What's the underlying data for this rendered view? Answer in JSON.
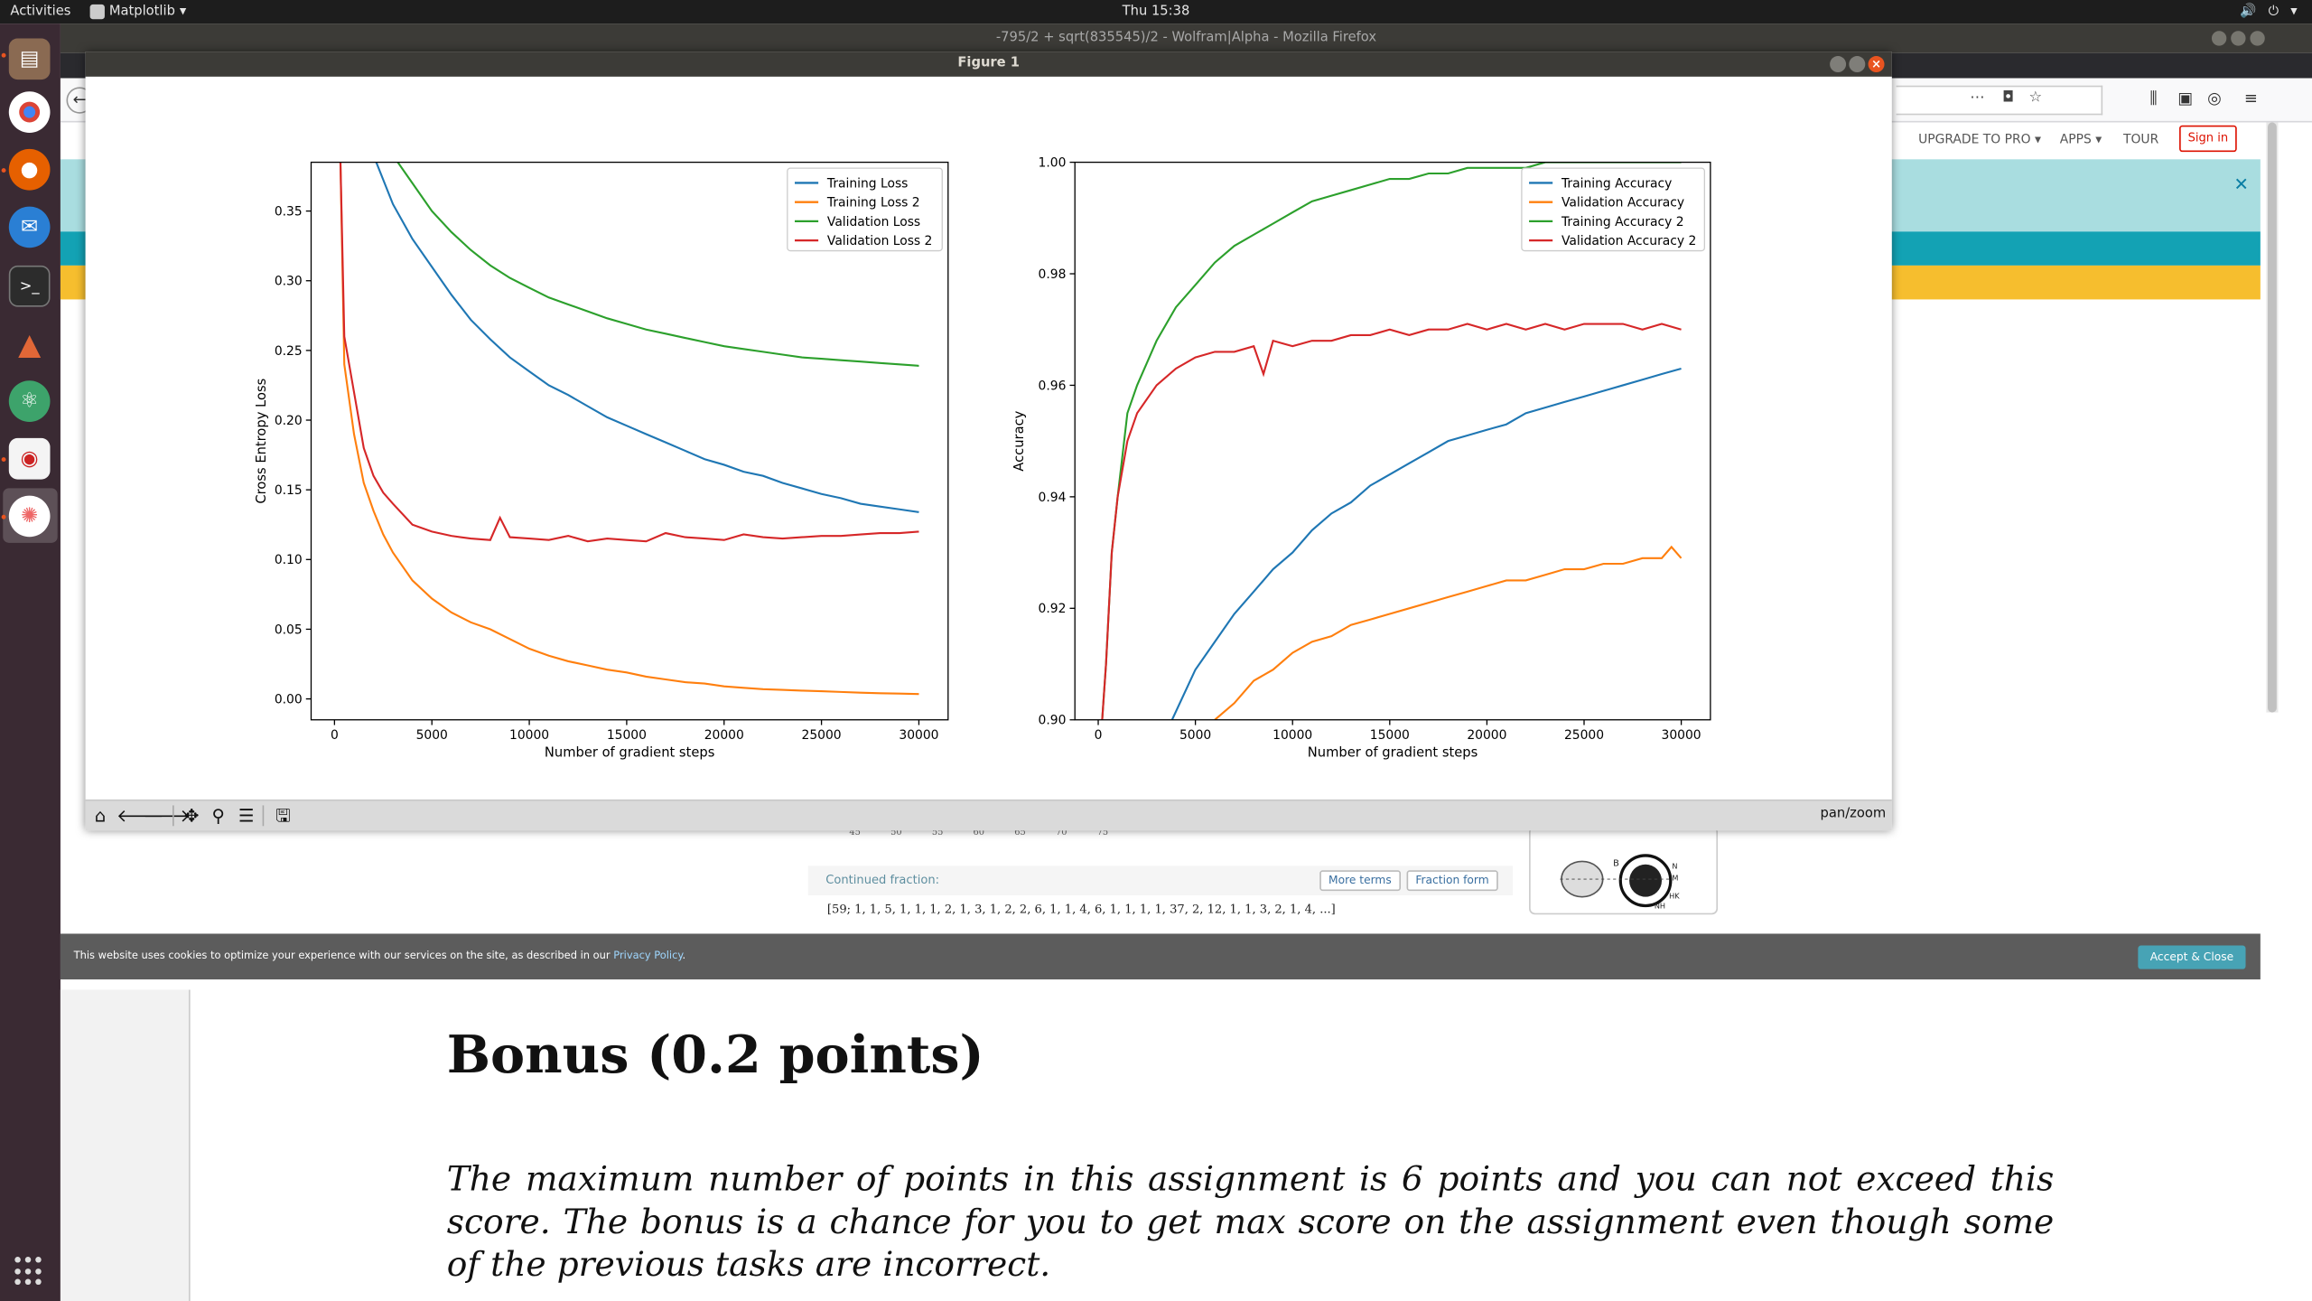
{
  "topbar": {
    "activities": "Activities",
    "app_name": "Matplotlib",
    "clock": "Thu 15:38"
  },
  "dock": {
    "icons": [
      "files-icon",
      "chrome-icon",
      "firefox-icon",
      "thunderbird-icon",
      "terminal-icon",
      "matlab-icon",
      "atom-icon",
      "pdf-viewer-icon",
      "matplotlib-icon"
    ]
  },
  "firefox": {
    "title": "-795/2 + sqrt(835545)/2 - Wolfram|Alpha - Mozilla Firefox"
  },
  "wolfram": {
    "nav": {
      "upgrade": "UPGRADE TO PRO",
      "apps": "APPS",
      "tour": "TOUR",
      "signin": "Sign in"
    },
    "ticks": [
      "45",
      "50",
      "55",
      "60",
      "65",
      "70",
      "75"
    ],
    "continued_fraction_label": "Continued fraction:",
    "more_terms": "More terms",
    "fraction_form": "Fraction form",
    "continued_fraction_value": "[59; 1, 1, 5, 1, 1, 1, 2, 1, 3, 1, 2, 2, 6, 1, 1, 4, 6, 1, 1, 1, 1, 37, 2, 12, 1, 1, 3, 2, 1, 4, ...]",
    "eye_figure_labels": [
      "B",
      "N",
      "M",
      "HK",
      "NH"
    ],
    "cookie_text": "This website uses cookies to optimize your experience with our services on the site, as described in our",
    "cookie_link": "Privacy Policy",
    "cookie_end": ".",
    "accept": "Accept & Close"
  },
  "pdf": {
    "heading": "Bonus (0.2 points)",
    "paragraph": "The maximum number of points in this assignment is 6 points and you can not exceed this score. The bonus is a chance for you to get max score on the assignment even though some of the previous tasks are incorrect."
  },
  "figure": {
    "title": "Figure 1",
    "mode": "pan/zoom",
    "toolbar": [
      "home-icon",
      "back-arrow-icon",
      "forward-arrow-icon",
      "pan-icon",
      "zoom-icon",
      "subplots-config-icon",
      "save-icon"
    ]
  },
  "chart_data": [
    {
      "type": "line",
      "xlabel": "Number of gradient steps",
      "ylabel": "Cross Entropy Loss",
      "xlim": [
        -1200,
        31500
      ],
      "ylim": [
        -0.015,
        0.385
      ],
      "xticks": [
        0,
        5000,
        10000,
        15000,
        20000,
        25000,
        30000
      ],
      "yticks": [
        0.0,
        0.05,
        0.1,
        0.15,
        0.2,
        0.25,
        0.3,
        0.35
      ],
      "ytick_labels": [
        "0.00",
        "0.05",
        "0.10",
        "0.15",
        "0.20",
        "0.25",
        "0.30",
        "0.35"
      ],
      "legend": "top-right",
      "series": [
        {
          "name": "Training Loss",
          "color": "#1f77b4",
          "x": [
            2000,
            3000,
            4000,
            5000,
            6000,
            7000,
            8000,
            9000,
            10000,
            11000,
            12000,
            13000,
            14000,
            15000,
            16000,
            17000,
            18000,
            19000,
            20000,
            21000,
            22000,
            23000,
            24000,
            25000,
            26000,
            27000,
            28000,
            29000,
            30000
          ],
          "y": [
            0.39,
            0.355,
            0.33,
            0.31,
            0.29,
            0.272,
            0.258,
            0.245,
            0.235,
            0.225,
            0.218,
            0.21,
            0.202,
            0.196,
            0.19,
            0.184,
            0.178,
            0.172,
            0.168,
            0.163,
            0.16,
            0.155,
            0.151,
            0.147,
            0.144,
            0.14,
            0.138,
            0.136,
            0.134
          ]
        },
        {
          "name": "Training Loss 2",
          "color": "#ff7f0e",
          "x": [
            300,
            500,
            1000,
            1500,
            2000,
            2500,
            3000,
            4000,
            5000,
            6000,
            7000,
            8000,
            9000,
            10000,
            11000,
            12000,
            13000,
            14000,
            15000,
            16000,
            17000,
            18000,
            19000,
            20000,
            21000,
            22000,
            23000,
            24000,
            25000,
            26000,
            27000,
            28000,
            29000,
            30000
          ],
          "y": [
            0.39,
            0.24,
            0.19,
            0.155,
            0.135,
            0.118,
            0.105,
            0.085,
            0.072,
            0.062,
            0.055,
            0.05,
            0.043,
            0.036,
            0.031,
            0.027,
            0.024,
            0.021,
            0.019,
            0.016,
            0.014,
            0.012,
            0.011,
            0.009,
            0.008,
            0.007,
            0.0065,
            0.006,
            0.0055,
            0.005,
            0.0045,
            0.004,
            0.0038,
            0.0035
          ]
        },
        {
          "name": "Validation Loss",
          "color": "#2ca02c",
          "x": [
            3000,
            4000,
            5000,
            6000,
            7000,
            8000,
            9000,
            10000,
            11000,
            12000,
            13000,
            14000,
            15000,
            16000,
            17000,
            18000,
            19000,
            20000,
            21000,
            22000,
            23000,
            24000,
            25000,
            26000,
            27000,
            28000,
            29000,
            30000
          ],
          "y": [
            0.39,
            0.37,
            0.35,
            0.335,
            0.322,
            0.311,
            0.302,
            0.295,
            0.288,
            0.283,
            0.278,
            0.273,
            0.269,
            0.265,
            0.262,
            0.259,
            0.256,
            0.253,
            0.251,
            0.249,
            0.247,
            0.245,
            0.244,
            0.243,
            0.242,
            0.241,
            0.24,
            0.239
          ]
        },
        {
          "name": "Validation Loss 2",
          "color": "#d62728",
          "x": [
            300,
            500,
            1000,
            1500,
            2000,
            2500,
            3000,
            4000,
            5000,
            6000,
            7000,
            8000,
            8500,
            9000,
            10000,
            11000,
            12000,
            13000,
            14000,
            15000,
            16000,
            17000,
            18000,
            19000,
            20000,
            21000,
            22000,
            23000,
            24000,
            25000,
            26000,
            27000,
            28000,
            29000,
            30000
          ],
          "y": [
            0.39,
            0.26,
            0.22,
            0.18,
            0.16,
            0.148,
            0.14,
            0.125,
            0.12,
            0.117,
            0.115,
            0.114,
            0.13,
            0.116,
            0.115,
            0.114,
            0.117,
            0.113,
            0.115,
            0.114,
            0.113,
            0.119,
            0.116,
            0.115,
            0.114,
            0.118,
            0.116,
            0.115,
            0.116,
            0.117,
            0.117,
            0.118,
            0.119,
            0.119,
            0.12
          ]
        }
      ]
    },
    {
      "type": "line",
      "xlabel": "Number of gradient steps",
      "ylabel": "Accuracy",
      "xlim": [
        -1200,
        31500
      ],
      "ylim": [
        0.9,
        1.0
      ],
      "xticks": [
        0,
        5000,
        10000,
        15000,
        20000,
        25000,
        30000
      ],
      "yticks": [
        0.9,
        0.92,
        0.94,
        0.96,
        0.98,
        1.0
      ],
      "ytick_labels": [
        "0.90",
        "0.92",
        "0.94",
        "0.96",
        "0.98",
        "1.00"
      ],
      "legend": "top-right",
      "series": [
        {
          "name": "Training Accuracy",
          "color": "#1f77b4",
          "x": [
            3800,
            5000,
            6000,
            7000,
            8000,
            9000,
            10000,
            11000,
            12000,
            13000,
            14000,
            15000,
            16000,
            17000,
            18000,
            19000,
            20000,
            21000,
            22000,
            23000,
            24000,
            25000,
            26000,
            27000,
            28000,
            29000,
            30000
          ],
          "y": [
            0.9,
            0.909,
            0.914,
            0.919,
            0.923,
            0.927,
            0.93,
            0.934,
            0.937,
            0.939,
            0.942,
            0.944,
            0.946,
            0.948,
            0.95,
            0.951,
            0.952,
            0.953,
            0.955,
            0.956,
            0.957,
            0.958,
            0.959,
            0.96,
            0.961,
            0.962,
            0.963
          ]
        },
        {
          "name": "Validation Accuracy",
          "color": "#ff7f0e",
          "x": [
            6000,
            7000,
            8000,
            9000,
            10000,
            11000,
            12000,
            13000,
            14000,
            15000,
            16000,
            17000,
            18000,
            19000,
            20000,
            21000,
            22000,
            23000,
            24000,
            25000,
            26000,
            27000,
            28000,
            29000,
            29500,
            30000
          ],
          "y": [
            0.9,
            0.903,
            0.907,
            0.909,
            0.912,
            0.914,
            0.915,
            0.917,
            0.918,
            0.919,
            0.92,
            0.921,
            0.922,
            0.923,
            0.924,
            0.925,
            0.925,
            0.926,
            0.927,
            0.927,
            0.928,
            0.928,
            0.929,
            0.929,
            0.931,
            0.929
          ]
        },
        {
          "name": "Training Accuracy 2",
          "color": "#2ca02c",
          "x": [
            200,
            400,
            700,
            1000,
            1500,
            2000,
            3000,
            4000,
            5000,
            6000,
            7000,
            8000,
            9000,
            10000,
            11000,
            12000,
            13000,
            14000,
            15000,
            16000,
            17000,
            18000,
            19000,
            20000,
            21000,
            22000,
            23000,
            24000,
            25000,
            26000,
            27000,
            28000,
            29000,
            30000
          ],
          "y": [
            0.9,
            0.91,
            0.93,
            0.94,
            0.955,
            0.96,
            0.968,
            0.974,
            0.978,
            0.982,
            0.985,
            0.987,
            0.989,
            0.991,
            0.993,
            0.994,
            0.995,
            0.996,
            0.997,
            0.997,
            0.998,
            0.998,
            0.999,
            0.999,
            0.999,
            0.999,
            1.0,
            1.0,
            1.0,
            1.0,
            1.0,
            1.0,
            1.0,
            1.0
          ]
        },
        {
          "name": "Validation Accuracy 2",
          "color": "#d62728",
          "x": [
            200,
            400,
            700,
            1000,
            1500,
            2000,
            3000,
            4000,
            5000,
            6000,
            7000,
            8000,
            8500,
            9000,
            10000,
            11000,
            12000,
            13000,
            14000,
            15000,
            16000,
            17000,
            18000,
            19000,
            20000,
            21000,
            22000,
            23000,
            24000,
            25000,
            26000,
            27000,
            28000,
            29000,
            30000
          ],
          "y": [
            0.9,
            0.91,
            0.93,
            0.94,
            0.95,
            0.955,
            0.96,
            0.963,
            0.965,
            0.966,
            0.966,
            0.967,
            0.962,
            0.968,
            0.967,
            0.968,
            0.968,
            0.969,
            0.969,
            0.97,
            0.969,
            0.97,
            0.97,
            0.971,
            0.97,
            0.971,
            0.97,
            0.971,
            0.97,
            0.971,
            0.971,
            0.971,
            0.97,
            0.971,
            0.97
          ]
        }
      ]
    }
  ]
}
